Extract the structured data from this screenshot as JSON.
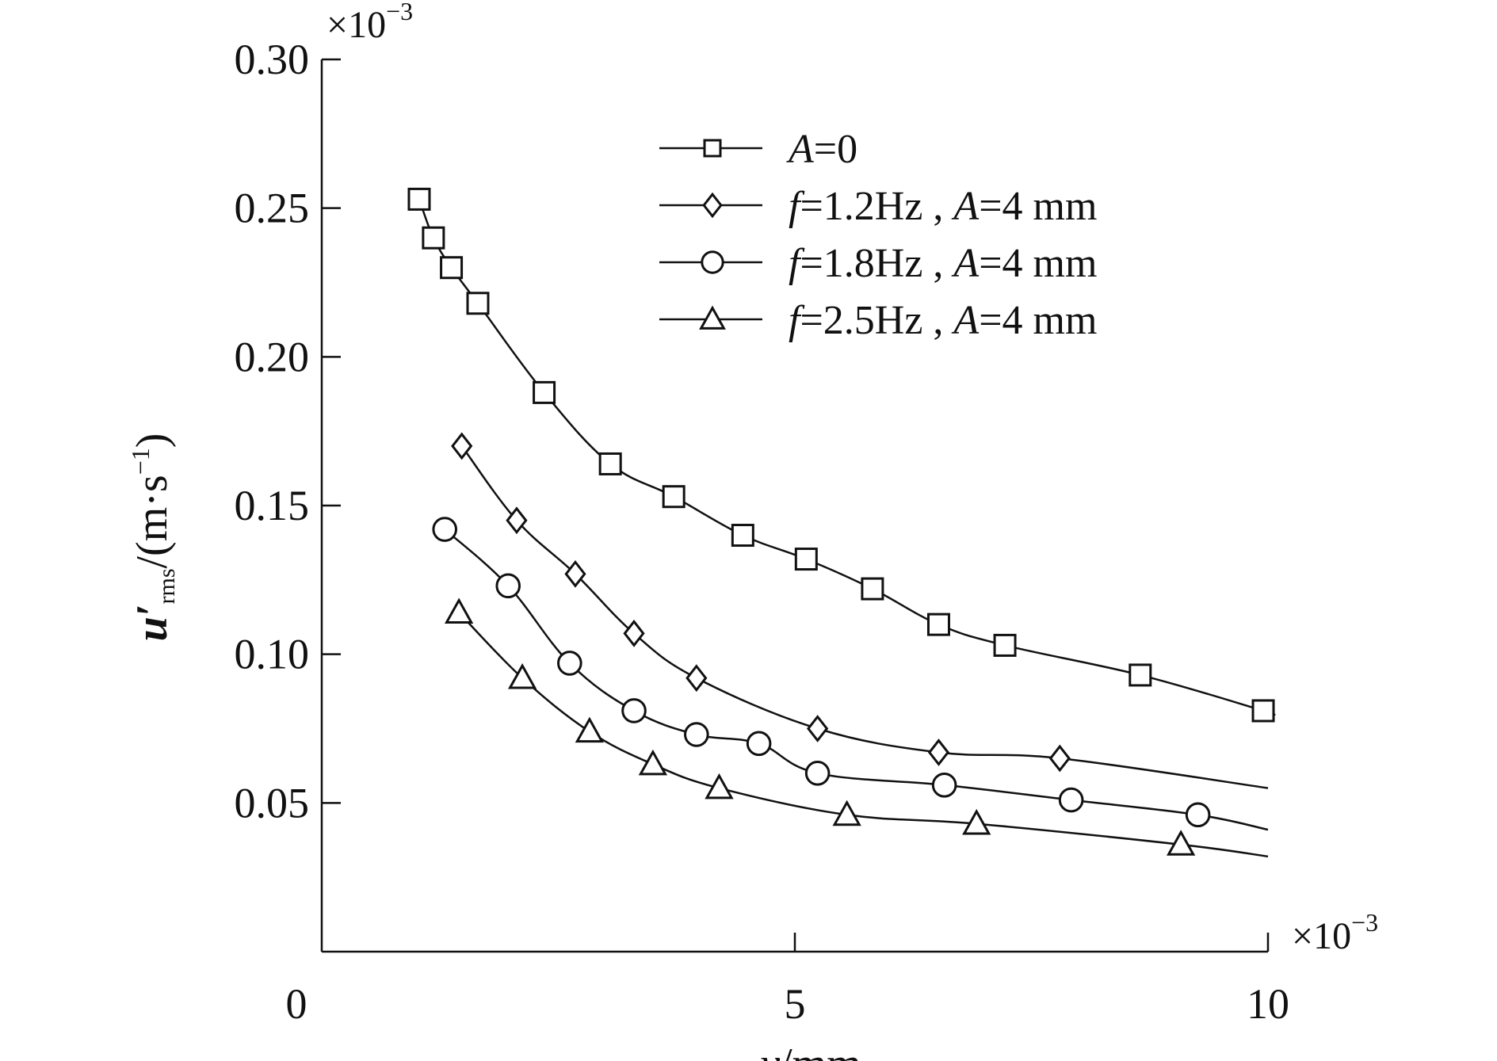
{
  "chart_data": {
    "type": "line",
    "title": "",
    "x_multiplier_label": "×10",
    "x_multiplier_exp": "−3",
    "y_multiplier_label": "×10",
    "y_multiplier_exp": "−3",
    "xlabel": {
      "var": "y",
      "unit": "/mm"
    },
    "ylabel": {
      "var": "u′",
      "sub": "rms",
      "unit": "/(m·s",
      "unit_sup": "−1",
      "close": ")"
    },
    "xlim": [
      0,
      10
    ],
    "ylim": [
      0,
      0.3
    ],
    "x_ticks": [
      {
        "value": 0,
        "label": "0"
      },
      {
        "value": 5,
        "label": "5"
      },
      {
        "value": 10,
        "label": "10"
      }
    ],
    "y_ticks": [
      {
        "value": 0.05,
        "label": "0.05"
      },
      {
        "value": 0.1,
        "label": "0.10"
      },
      {
        "value": 0.15,
        "label": "0.15"
      },
      {
        "value": 0.2,
        "label": "0.20"
      },
      {
        "value": 0.25,
        "label": "0.25"
      },
      {
        "value": 0.3,
        "label": "0.30"
      }
    ],
    "legend_position": "top-right",
    "grid": false,
    "series": [
      {
        "marker": "square",
        "legend": [
          {
            "text": "A",
            "italic": true
          },
          {
            "text": "=0",
            "italic": false
          }
        ],
        "points": [
          [
            1.03,
            0.253
          ],
          [
            1.18,
            0.24
          ],
          [
            1.37,
            0.23
          ],
          [
            1.65,
            0.218
          ],
          [
            2.35,
            0.188
          ],
          [
            3.05,
            0.164
          ],
          [
            3.72,
            0.153
          ],
          [
            4.45,
            0.14
          ],
          [
            5.12,
            0.132
          ],
          [
            5.82,
            0.122
          ],
          [
            6.52,
            0.11
          ],
          [
            7.22,
            0.103
          ],
          [
            8.65,
            0.093
          ],
          [
            9.95,
            0.081
          ]
        ],
        "curve_end": [
          10.0,
          0.08
        ]
      },
      {
        "marker": "diamond",
        "legend": [
          {
            "text": "f",
            "italic": true
          },
          {
            "text": "=1.2Hz , ",
            "italic": false
          },
          {
            "text": "A",
            "italic": true
          },
          {
            "text": "=4 mm",
            "italic": false
          }
        ],
        "points": [
          [
            1.48,
            0.17
          ],
          [
            2.06,
            0.145
          ],
          [
            2.68,
            0.127
          ],
          [
            3.3,
            0.107
          ],
          [
            3.96,
            0.092
          ],
          [
            5.24,
            0.075
          ],
          [
            6.52,
            0.067
          ],
          [
            7.8,
            0.065
          ]
        ],
        "curve_end": [
          10.0,
          0.055
        ]
      },
      {
        "marker": "circle",
        "legend": [
          {
            "text": "f",
            "italic": true
          },
          {
            "text": "=1.8Hz , ",
            "italic": false
          },
          {
            "text": "A",
            "italic": true
          },
          {
            "text": "=4 mm",
            "italic": false
          }
        ],
        "points": [
          [
            1.3,
            0.142
          ],
          [
            1.97,
            0.123
          ],
          [
            2.62,
            0.097
          ],
          [
            3.3,
            0.081
          ],
          [
            3.96,
            0.073
          ],
          [
            4.62,
            0.07
          ],
          [
            5.24,
            0.06
          ],
          [
            6.58,
            0.056
          ],
          [
            7.92,
            0.051
          ],
          [
            9.26,
            0.046
          ]
        ],
        "curve_end": [
          10.0,
          0.041
        ]
      },
      {
        "marker": "triangle",
        "legend": [
          {
            "text": "f",
            "italic": true
          },
          {
            "text": "=2.5Hz , ",
            "italic": false
          },
          {
            "text": "A",
            "italic": true
          },
          {
            "text": "=4 mm",
            "italic": false
          }
        ],
        "points": [
          [
            1.45,
            0.114
          ],
          [
            2.12,
            0.092
          ],
          [
            2.83,
            0.074
          ],
          [
            3.5,
            0.063
          ],
          [
            4.2,
            0.055
          ],
          [
            5.55,
            0.046
          ],
          [
            6.92,
            0.043
          ],
          [
            9.08,
            0.036
          ]
        ],
        "curve_end": [
          10.0,
          0.032
        ]
      }
    ]
  }
}
